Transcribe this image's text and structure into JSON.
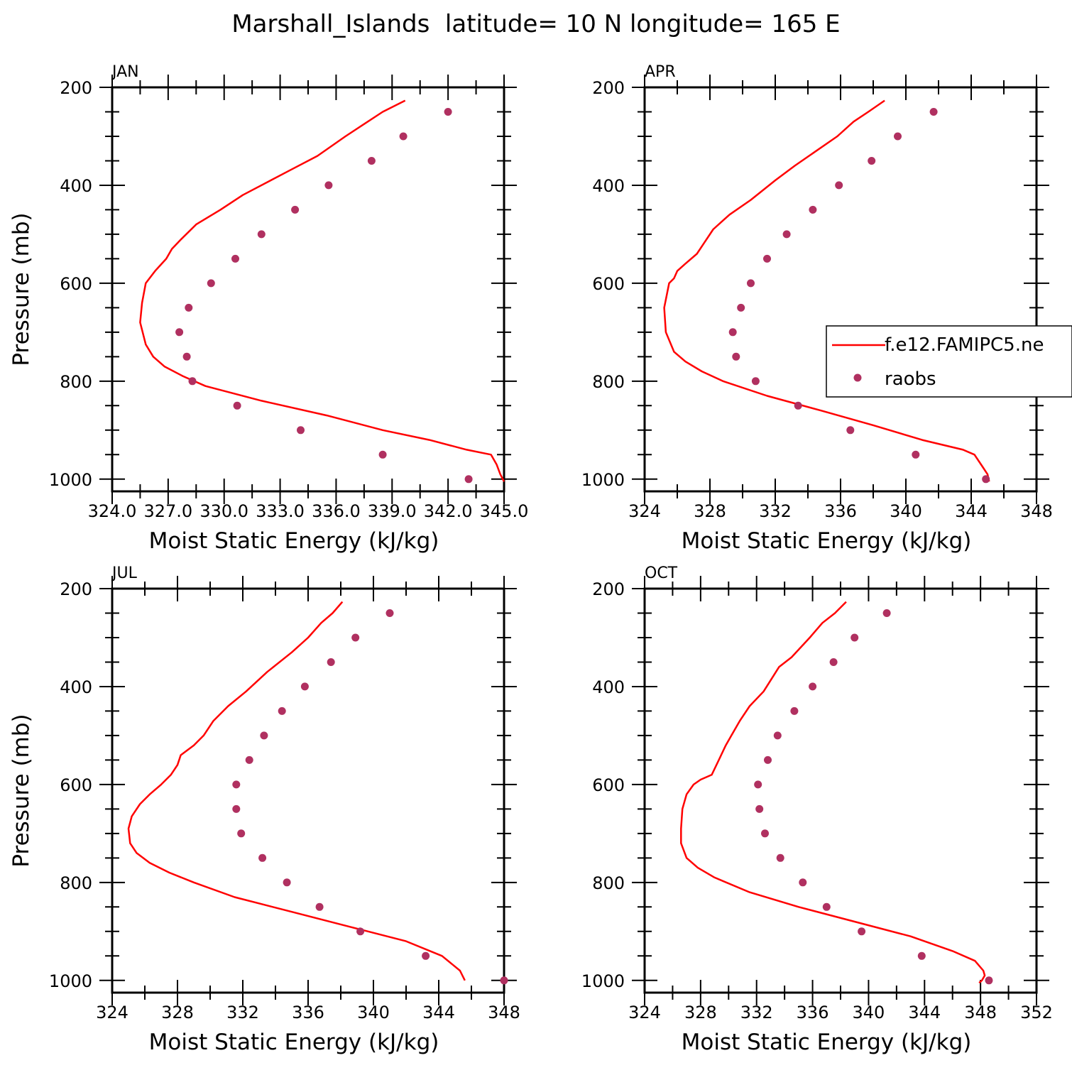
{
  "title": "Marshall_Islands  latitude= 10 N longitude= 165 E",
  "colors": {
    "model_line": "#ff0000",
    "obs_marker": "#b03060"
  },
  "chart_data": [
    {
      "type": "line",
      "panel_label": "JAN",
      "xlabel": "Moist Static Energy (kJ/kg)",
      "ylabel": "Pressure (mb)",
      "xlim": [
        324.0,
        345.0
      ],
      "x_tick_labels": [
        "324.0",
        "327.0",
        "330.0",
        "333.0",
        "336.0",
        "339.0",
        "342.0",
        "345.0"
      ],
      "x_tick_values": [
        324,
        327,
        330,
        333,
        336,
        339,
        342,
        345
      ],
      "ylim": [
        1025,
        200
      ],
      "y_tick_labels": [
        "200",
        "400",
        "600",
        "800",
        "1000"
      ],
      "y_tick_values": [
        200,
        400,
        600,
        800,
        1000
      ],
      "series": [
        {
          "name": "f.e12.FAMIPC5.ne",
          "style": "line",
          "x": [
            339.7,
            338.5,
            337.5,
            336.5,
            335.0,
            333.5,
            332.5,
            331.0,
            329.8,
            328.5,
            327.7,
            327.2,
            326.9,
            326.3,
            325.8,
            325.6,
            325.5,
            325.8,
            326.2,
            326.8,
            327.8,
            329.0,
            332.0,
            335.5,
            338.5,
            341.0,
            343.0,
            344.3,
            344.6,
            344.8,
            345.0
          ],
          "y": [
            227,
            250,
            275,
            300,
            340,
            370,
            390,
            420,
            450,
            480,
            510,
            530,
            550,
            575,
            600,
            640,
            680,
            725,
            750,
            770,
            790,
            810,
            840,
            870,
            900,
            920,
            940,
            950,
            970,
            990,
            1005
          ]
        },
        {
          "name": "raobs",
          "style": "marker",
          "x": [
            342.0,
            339.6,
            337.9,
            335.6,
            333.8,
            332.0,
            330.6,
            329.3,
            328.1,
            327.6,
            328.0,
            328.3,
            330.7,
            334.1,
            338.5,
            343.1
          ],
          "y": [
            250,
            300,
            350,
            400,
            450,
            500,
            550,
            600,
            650,
            700,
            750,
            800,
            850,
            900,
            950,
            1000
          ]
        }
      ]
    },
    {
      "type": "line",
      "panel_label": "APR",
      "xlabel": "Moist Static Energy (kJ/kg)",
      "ylabel": "",
      "xlim": [
        324,
        348
      ],
      "x_tick_labels": [
        "324",
        "328",
        "332",
        "336",
        "340",
        "344",
        "348"
      ],
      "x_tick_values": [
        324,
        328,
        332,
        336,
        340,
        344,
        348
      ],
      "ylim": [
        1025,
        200
      ],
      "y_tick_labels": [
        "200",
        "400",
        "600",
        "800",
        "1000"
      ],
      "y_tick_values": [
        200,
        400,
        600,
        800,
        1000
      ],
      "legend": {
        "position": "right",
        "entries": [
          "f.e12.FAMIPC5.ne",
          "raobs"
        ]
      },
      "series": [
        {
          "name": "f.e12.FAMIPC5.ne",
          "style": "line",
          "x": [
            338.7,
            337.7,
            336.8,
            335.8,
            334.5,
            333.2,
            332.0,
            330.5,
            329.2,
            328.2,
            327.6,
            327.2,
            326.5,
            326.0,
            325.8,
            325.5,
            325.2,
            325.3,
            325.8,
            326.5,
            327.5,
            328.8,
            331.5,
            334.8,
            338.0,
            341.0,
            343.5,
            344.2,
            344.7,
            345.0,
            345.1
          ],
          "y": [
            227,
            250,
            270,
            300,
            330,
            360,
            390,
            430,
            460,
            490,
            520,
            540,
            560,
            575,
            590,
            600,
            650,
            700,
            740,
            760,
            780,
            800,
            830,
            860,
            890,
            920,
            940,
            950,
            975,
            990,
            1005
          ]
        },
        {
          "name": "raobs",
          "style": "marker",
          "x": [
            341.7,
            339.5,
            337.9,
            335.9,
            334.3,
            332.7,
            331.5,
            330.5,
            329.9,
            329.4,
            329.6,
            330.8,
            333.4,
            336.6,
            340.6,
            344.9
          ],
          "y": [
            250,
            300,
            350,
            400,
            450,
            500,
            550,
            600,
            650,
            700,
            750,
            800,
            850,
            900,
            950,
            1000
          ]
        }
      ]
    },
    {
      "type": "line",
      "panel_label": "JUL",
      "xlabel": "Moist Static Energy (kJ/kg)",
      "ylabel": "Pressure (mb)",
      "xlim": [
        324,
        348
      ],
      "x_tick_labels": [
        "324",
        "328",
        "332",
        "336",
        "340",
        "344",
        "348"
      ],
      "x_tick_values": [
        324,
        328,
        332,
        336,
        340,
        344,
        348
      ],
      "ylim": [
        1025,
        200
      ],
      "y_tick_labels": [
        "200",
        "400",
        "600",
        "800",
        "1000"
      ],
      "y_tick_values": [
        200,
        400,
        600,
        800,
        1000
      ],
      "series": [
        {
          "name": "f.e12.FAMIPC5.ne",
          "style": "line",
          "x": [
            338.1,
            337.5,
            336.8,
            336.0,
            335.0,
            333.5,
            332.2,
            331.1,
            330.2,
            329.6,
            329.0,
            328.2,
            328.0,
            327.6,
            327.0,
            326.3,
            325.7,
            325.2,
            325.0,
            325.1,
            325.5,
            326.3,
            327.5,
            329.0,
            331.5,
            335.0,
            338.5,
            342.0,
            344.2,
            345.3,
            345.6
          ],
          "y": [
            227,
            250,
            270,
            300,
            330,
            370,
            410,
            440,
            470,
            500,
            520,
            540,
            560,
            580,
            600,
            620,
            640,
            665,
            690,
            720,
            740,
            760,
            780,
            800,
            830,
            860,
            890,
            920,
            950,
            980,
            1000
          ]
        },
        {
          "name": "raobs",
          "style": "marker",
          "x": [
            341.0,
            338.9,
            337.4,
            335.8,
            334.4,
            333.3,
            332.4,
            331.6,
            331.6,
            331.9,
            333.2,
            334.7,
            336.7,
            339.2,
            343.2,
            348.0
          ],
          "y": [
            250,
            300,
            350,
            400,
            450,
            500,
            550,
            600,
            650,
            700,
            750,
            800,
            850,
            900,
            950,
            1000
          ]
        }
      ]
    },
    {
      "type": "line",
      "panel_label": "OCT",
      "xlabel": "Moist Static Energy (kJ/kg)",
      "ylabel": "",
      "xlim": [
        324,
        352
      ],
      "x_tick_labels": [
        "324",
        "328",
        "332",
        "336",
        "340",
        "344",
        "348",
        "352"
      ],
      "x_tick_values": [
        324,
        328,
        332,
        336,
        340,
        344,
        348,
        352
      ],
      "ylim": [
        1025,
        200
      ],
      "y_tick_labels": [
        "200",
        "400",
        "600",
        "800",
        "1000"
      ],
      "y_tick_values": [
        200,
        400,
        600,
        800,
        1000
      ],
      "series": [
        {
          "name": "f.e12.FAMIPC5.ne",
          "style": "line",
          "x": [
            338.4,
            337.6,
            336.7,
            335.8,
            334.5,
            333.6,
            332.5,
            331.5,
            330.8,
            330.2,
            329.8,
            329.3,
            328.8,
            328.0,
            327.5,
            327.0,
            326.7,
            326.6,
            326.6,
            327.0,
            327.8,
            329.0,
            331.5,
            335.0,
            339.0,
            343.0,
            346.0,
            347.6,
            348.2,
            348.3,
            348.1,
            347.9
          ],
          "y": [
            227,
            250,
            270,
            300,
            340,
            360,
            410,
            440,
            470,
            500,
            520,
            550,
            580,
            590,
            600,
            620,
            650,
            690,
            720,
            750,
            770,
            790,
            820,
            850,
            880,
            910,
            940,
            960,
            980,
            990,
            1000,
            1005
          ]
        },
        {
          "name": "raobs",
          "style": "marker",
          "x": [
            341.3,
            339.0,
            337.5,
            336.0,
            334.7,
            333.5,
            332.8,
            332.1,
            332.2,
            332.6,
            333.7,
            335.3,
            337.0,
            339.5,
            343.8,
            348.6
          ],
          "y": [
            250,
            300,
            350,
            400,
            450,
            500,
            550,
            600,
            650,
            700,
            750,
            800,
            850,
            900,
            950,
            1000
          ]
        }
      ]
    }
  ]
}
